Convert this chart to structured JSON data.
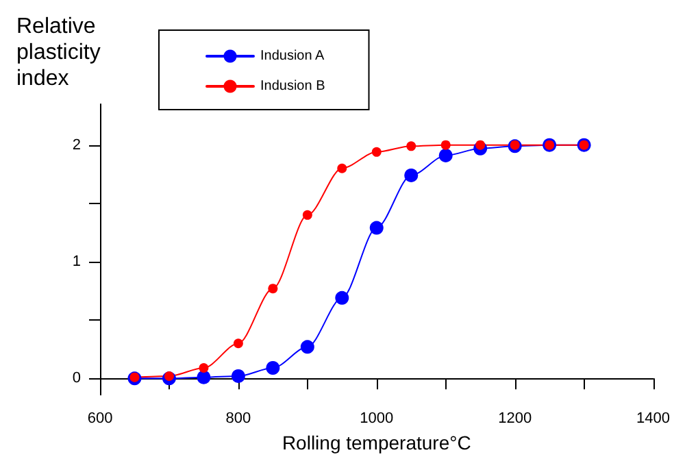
{
  "chart_data": {
    "type": "line",
    "xlabel": "Rolling temperature°C",
    "ylabel": "Relative plasticity index",
    "x": [
      650,
      700,
      750,
      800,
      850,
      900,
      950,
      1000,
      1050,
      1100,
      1150,
      1200,
      1250,
      1300
    ],
    "series": [
      {
        "name": "Indusion A",
        "color": "#0000ff",
        "values": [
          0,
          0,
          0.01,
          0.02,
          0.09,
          0.27,
          0.69,
          1.29,
          1.74,
          1.91,
          1.97,
          1.99,
          2.0,
          2.0
        ]
      },
      {
        "name": "Indusion B",
        "color": "#ff0000",
        "values": [
          0.01,
          0.02,
          0.09,
          0.3,
          0.77,
          1.4,
          1.8,
          1.94,
          1.99,
          2.0,
          2.0,
          2.0,
          2.0,
          2.0
        ]
      }
    ],
    "xlim": [
      600,
      1400
    ],
    "xticks": [
      600,
      {
        "value": 700,
        "label": null
      },
      800,
      {
        "value": 900,
        "label": null
      },
      1000,
      {
        "value": 1100,
        "label": null
      },
      1200,
      {
        "value": 1300,
        "label": null
      },
      1400
    ],
    "ylim": [
      -0.14,
      2.35
    ],
    "yticks": [
      0,
      {
        "value": 0.5,
        "label": null
      },
      1,
      {
        "value": 1.5,
        "label": null
      },
      2
    ],
    "grid": false,
    "legend": "top",
    "marker": "circle",
    "line_style": "solid"
  }
}
